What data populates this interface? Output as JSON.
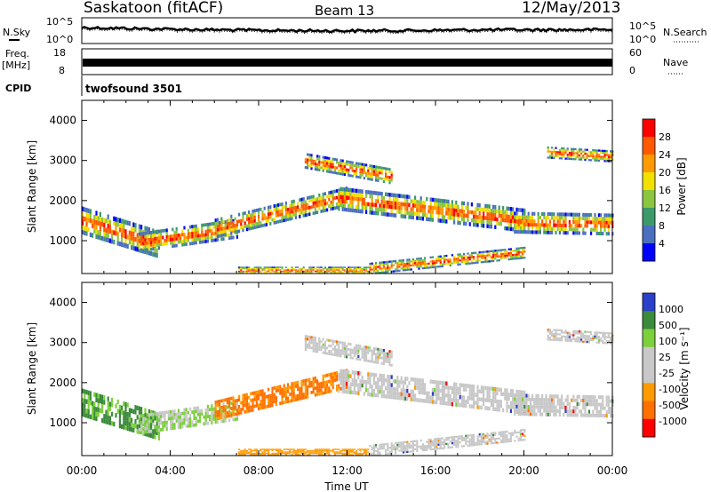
{
  "header": {
    "station": "Saskatoon (fitACF)",
    "beam": "Beam 13",
    "date": "12/May/2013"
  },
  "noise_panel": {
    "left_label": "N.Sky",
    "right_label": "N.Search",
    "left_ticks": [
      "10^5",
      "10^0"
    ],
    "right_ticks": [
      "10^5",
      "10^0"
    ]
  },
  "freq_panel": {
    "left_label_1": "Freq.",
    "left_label_2": "[MHz]",
    "right_label": "Nave",
    "left_ticks": [
      "18",
      "8"
    ],
    "right_ticks": [
      "60",
      "0"
    ]
  },
  "cpid": {
    "label": "CPID",
    "value": "twofsound 3501"
  },
  "colors": {
    "power": [
      "#0000ff",
      "#4a6fc0",
      "#3c9a6a",
      "#8cc63f",
      "#f2e000",
      "#ff9a00",
      "#ff5a00",
      "#ff0000"
    ],
    "velocity": [
      "#2a40c8",
      "#3c8a3c",
      "#7cd03c",
      "#c8c8c8",
      "#c8c8c8",
      "#ff9a00",
      "#ff7000",
      "#ff0000"
    ]
  },
  "chart_data": [
    {
      "type": "heatmap",
      "name": "power",
      "ylabel": "Slant Range [km]",
      "xlabel": "Time UT",
      "ylim": [
        180,
        4500
      ],
      "yticks": [
        "1000",
        "2000",
        "3000",
        "4000"
      ],
      "colorbar": {
        "label": "Power [dB]",
        "ticks": [
          "4",
          "8",
          "12",
          "16",
          "20",
          "24",
          "28"
        ]
      }
    },
    {
      "type": "heatmap",
      "name": "velocity",
      "ylabel": "Slant Range [km]",
      "xlabel": "Time UT",
      "ylim": [
        180,
        4500
      ],
      "yticks": [
        "1000",
        "2000",
        "3000",
        "4000"
      ],
      "colorbar": {
        "label": "Velocity [m s⁻¹]",
        "ticks": [
          "1000",
          "500",
          "100",
          "25",
          "-25",
          "-100",
          "-500",
          "-1000"
        ]
      }
    }
  ],
  "time_axis": {
    "label": "Time UT",
    "ticks": [
      "00:00",
      "04:00",
      "08:00",
      "12:00",
      "16:00",
      "20:00",
      "00:00"
    ]
  }
}
